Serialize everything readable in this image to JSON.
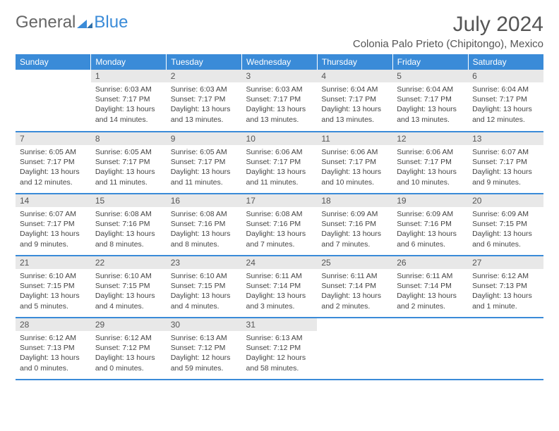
{
  "logo": {
    "text1": "General",
    "text2": "Blue"
  },
  "title": "July 2024",
  "location": "Colonia Palo Prieto (Chipitongo), Mexico",
  "colors": {
    "header_bg": "#3a8bd8",
    "daynum_bg": "#e8e8e8",
    "row_border": "#3a8bd8",
    "logo_blue": "#3a8bd8"
  },
  "weekdays": [
    "Sunday",
    "Monday",
    "Tuesday",
    "Wednesday",
    "Thursday",
    "Friday",
    "Saturday"
  ],
  "weeks": [
    [
      null,
      {
        "n": "1",
        "sr": "6:03 AM",
        "ss": "7:17 PM",
        "dl": "13 hours and 14 minutes."
      },
      {
        "n": "2",
        "sr": "6:03 AM",
        "ss": "7:17 PM",
        "dl": "13 hours and 13 minutes."
      },
      {
        "n": "3",
        "sr": "6:03 AM",
        "ss": "7:17 PM",
        "dl": "13 hours and 13 minutes."
      },
      {
        "n": "4",
        "sr": "6:04 AM",
        "ss": "7:17 PM",
        "dl": "13 hours and 13 minutes."
      },
      {
        "n": "5",
        "sr": "6:04 AM",
        "ss": "7:17 PM",
        "dl": "13 hours and 13 minutes."
      },
      {
        "n": "6",
        "sr": "6:04 AM",
        "ss": "7:17 PM",
        "dl": "13 hours and 12 minutes."
      }
    ],
    [
      {
        "n": "7",
        "sr": "6:05 AM",
        "ss": "7:17 PM",
        "dl": "13 hours and 12 minutes."
      },
      {
        "n": "8",
        "sr": "6:05 AM",
        "ss": "7:17 PM",
        "dl": "13 hours and 11 minutes."
      },
      {
        "n": "9",
        "sr": "6:05 AM",
        "ss": "7:17 PM",
        "dl": "13 hours and 11 minutes."
      },
      {
        "n": "10",
        "sr": "6:06 AM",
        "ss": "7:17 PM",
        "dl": "13 hours and 11 minutes."
      },
      {
        "n": "11",
        "sr": "6:06 AM",
        "ss": "7:17 PM",
        "dl": "13 hours and 10 minutes."
      },
      {
        "n": "12",
        "sr": "6:06 AM",
        "ss": "7:17 PM",
        "dl": "13 hours and 10 minutes."
      },
      {
        "n": "13",
        "sr": "6:07 AM",
        "ss": "7:17 PM",
        "dl": "13 hours and 9 minutes."
      }
    ],
    [
      {
        "n": "14",
        "sr": "6:07 AM",
        "ss": "7:17 PM",
        "dl": "13 hours and 9 minutes."
      },
      {
        "n": "15",
        "sr": "6:08 AM",
        "ss": "7:16 PM",
        "dl": "13 hours and 8 minutes."
      },
      {
        "n": "16",
        "sr": "6:08 AM",
        "ss": "7:16 PM",
        "dl": "13 hours and 8 minutes."
      },
      {
        "n": "17",
        "sr": "6:08 AM",
        "ss": "7:16 PM",
        "dl": "13 hours and 7 minutes."
      },
      {
        "n": "18",
        "sr": "6:09 AM",
        "ss": "7:16 PM",
        "dl": "13 hours and 7 minutes."
      },
      {
        "n": "19",
        "sr": "6:09 AM",
        "ss": "7:16 PM",
        "dl": "13 hours and 6 minutes."
      },
      {
        "n": "20",
        "sr": "6:09 AM",
        "ss": "7:15 PM",
        "dl": "13 hours and 6 minutes."
      }
    ],
    [
      {
        "n": "21",
        "sr": "6:10 AM",
        "ss": "7:15 PM",
        "dl": "13 hours and 5 minutes."
      },
      {
        "n": "22",
        "sr": "6:10 AM",
        "ss": "7:15 PM",
        "dl": "13 hours and 4 minutes."
      },
      {
        "n": "23",
        "sr": "6:10 AM",
        "ss": "7:15 PM",
        "dl": "13 hours and 4 minutes."
      },
      {
        "n": "24",
        "sr": "6:11 AM",
        "ss": "7:14 PM",
        "dl": "13 hours and 3 minutes."
      },
      {
        "n": "25",
        "sr": "6:11 AM",
        "ss": "7:14 PM",
        "dl": "13 hours and 2 minutes."
      },
      {
        "n": "26",
        "sr": "6:11 AM",
        "ss": "7:14 PM",
        "dl": "13 hours and 2 minutes."
      },
      {
        "n": "27",
        "sr": "6:12 AM",
        "ss": "7:13 PM",
        "dl": "13 hours and 1 minute."
      }
    ],
    [
      {
        "n": "28",
        "sr": "6:12 AM",
        "ss": "7:13 PM",
        "dl": "13 hours and 0 minutes."
      },
      {
        "n": "29",
        "sr": "6:12 AM",
        "ss": "7:12 PM",
        "dl": "13 hours and 0 minutes."
      },
      {
        "n": "30",
        "sr": "6:13 AM",
        "ss": "7:12 PM",
        "dl": "12 hours and 59 minutes."
      },
      {
        "n": "31",
        "sr": "6:13 AM",
        "ss": "7:12 PM",
        "dl": "12 hours and 58 minutes."
      },
      null,
      null,
      null
    ]
  ],
  "labels": {
    "sunrise": "Sunrise: ",
    "sunset": "Sunset: ",
    "daylight": "Daylight: "
  }
}
